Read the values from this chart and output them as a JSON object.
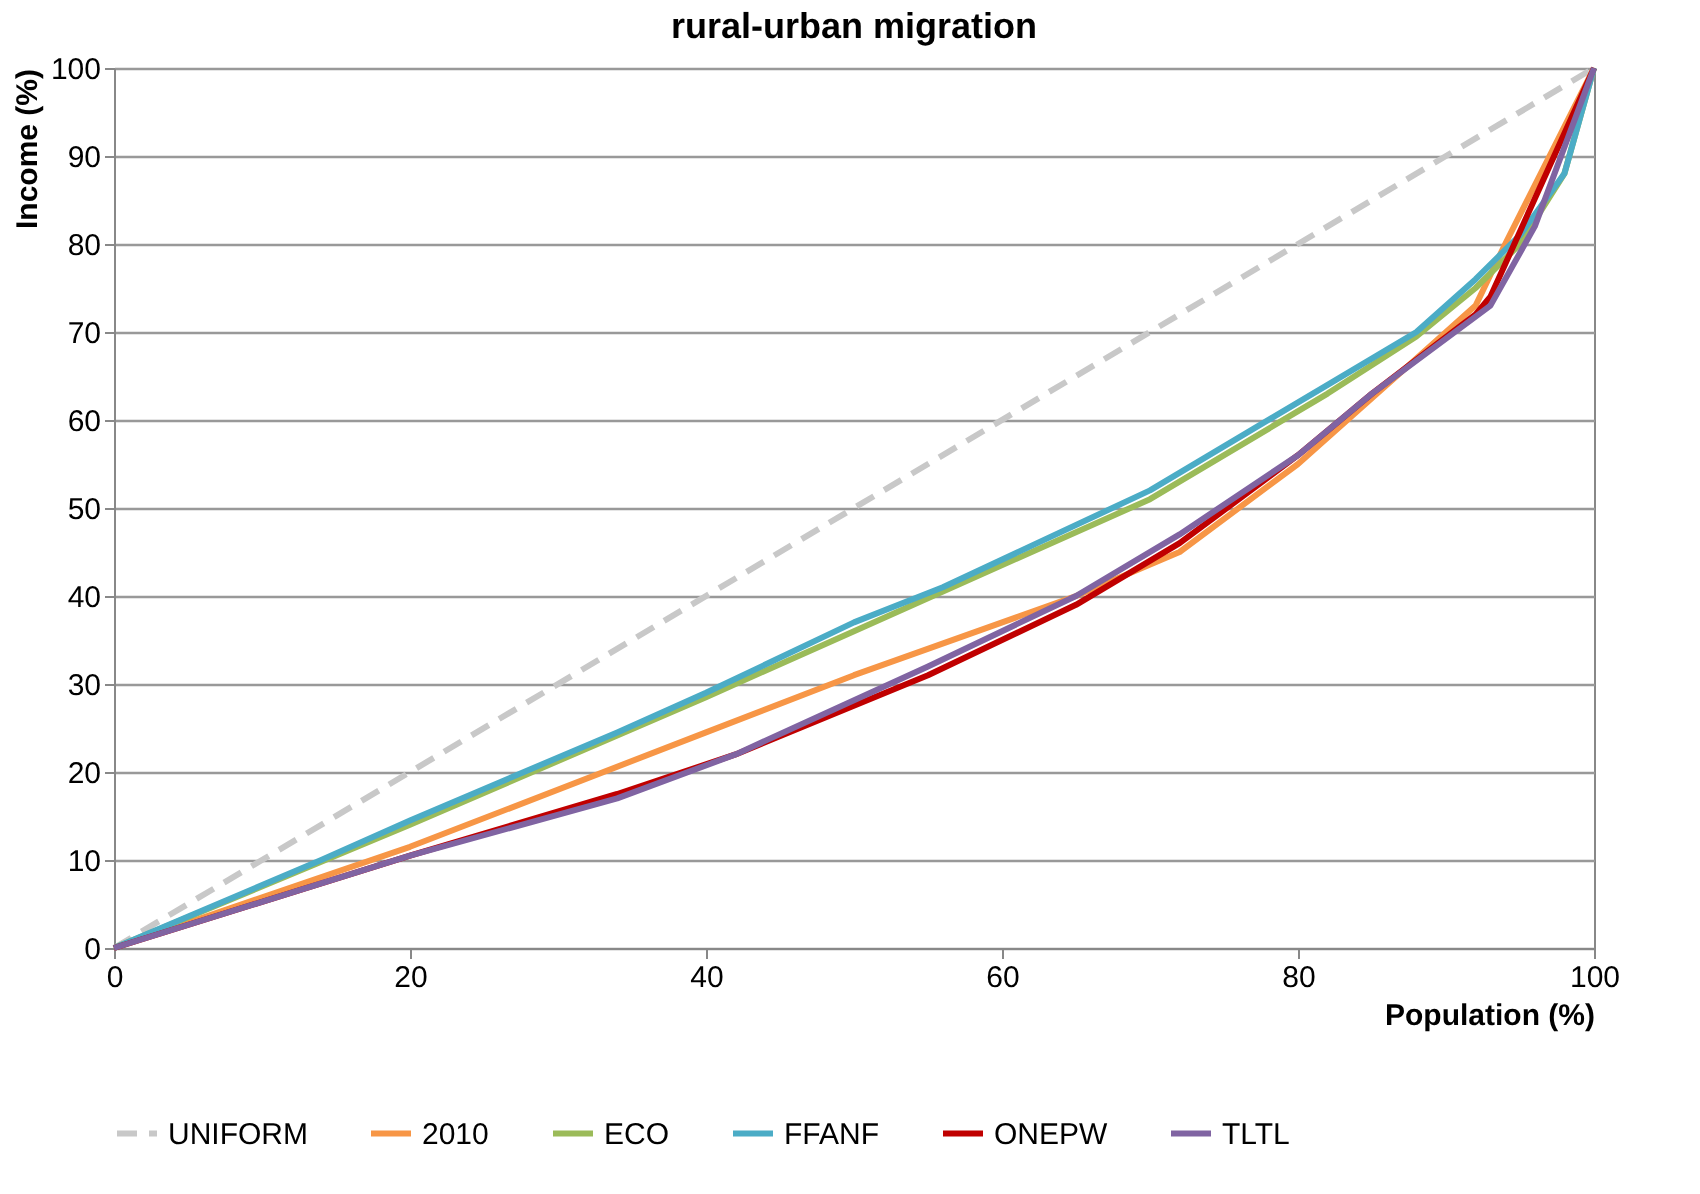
{
  "chart_data": {
    "type": "line",
    "title": "rural-urban migration",
    "xlabel": "Population (%)",
    "ylabel": "Income (%)",
    "xlim": [
      0,
      100
    ],
    "xticks": [
      0,
      20,
      40,
      60,
      80,
      100
    ],
    "ylim": [
      0,
      100
    ],
    "yticks": [
      0,
      10,
      20,
      30,
      40,
      50,
      60,
      70,
      80,
      90,
      100
    ],
    "grid": "y",
    "legend": "bottom",
    "marker": "none",
    "series": [
      {
        "name": "UNIFORM",
        "color": "#c8c8c8",
        "line_style": "dashed",
        "x": [
          0,
          100
        ],
        "values": [
          0,
          100
        ]
      },
      {
        "name": "2010",
        "color": "#f79646",
        "x": [
          0,
          20,
          40,
          50,
          65,
          72,
          80,
          88,
          92,
          94,
          100
        ],
        "values": [
          0,
          11.5,
          24.5,
          31,
          40,
          45,
          55,
          67,
          73,
          80,
          100
        ]
      },
      {
        "name": "ECO",
        "color": "#9bbb59",
        "x": [
          0,
          20,
          40,
          50,
          70,
          82,
          88,
          92,
          95,
          98,
          100
        ],
        "values": [
          0,
          14,
          28.5,
          36,
          51,
          63,
          69.5,
          75,
          80,
          88,
          100
        ]
      },
      {
        "name": "FFANF",
        "color": "#4bacc6",
        "x": [
          0,
          14,
          20,
          34,
          40,
          50,
          56,
          70,
          82,
          88,
          92,
          95,
          98,
          100
        ],
        "values": [
          0,
          10,
          14.5,
          24.5,
          29,
          37,
          41,
          52,
          64,
          70,
          76,
          81,
          88,
          100
        ]
      },
      {
        "name": "ONEPW",
        "color": "#c00000",
        "x": [
          0,
          20,
          34,
          42,
          55,
          65,
          72,
          80,
          85,
          92,
          93,
          100
        ],
        "values": [
          0,
          10.5,
          17.5,
          22,
          31,
          39,
          46,
          56,
          63,
          72,
          74,
          100
        ]
      },
      {
        "name": "TLTL",
        "color": "#8064a2",
        "x": [
          0,
          20,
          34,
          42,
          55,
          65,
          72,
          80,
          85,
          93,
          96,
          100
        ],
        "values": [
          0,
          10.5,
          17,
          22,
          32,
          40,
          47,
          56,
          63,
          73,
          82,
          100
        ]
      }
    ]
  }
}
